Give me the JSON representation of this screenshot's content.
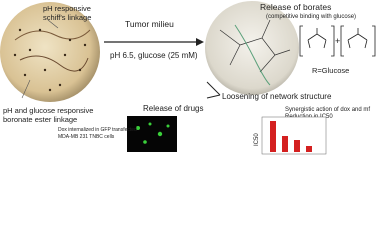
{
  "left_dish": {
    "label_top": [
      "pH responsive",
      "schiff's linkage"
    ],
    "label_bottom": [
      "pH and glucose responsive",
      "boronate ester linkage"
    ]
  },
  "arrow": {
    "title": "Tumor milieu",
    "condition": "pH 6.5, glucose (25 mM)"
  },
  "right_dish": {
    "release": "Release of borates",
    "release_note": "(competitive binding with glucose)",
    "r_label": "R=Glucose",
    "loosening": "Loosening of network structure"
  },
  "drugs": {
    "title": "Release of drugs",
    "cells_caption": [
      "Dox internalized in GFP transfected",
      "MDA-MB 231 TNBC cells"
    ]
  },
  "ic50": {
    "note": [
      "Synergistic action of dox and mf",
      "Reduction in IC50"
    ],
    "axis_label": "IC50"
  }
}
